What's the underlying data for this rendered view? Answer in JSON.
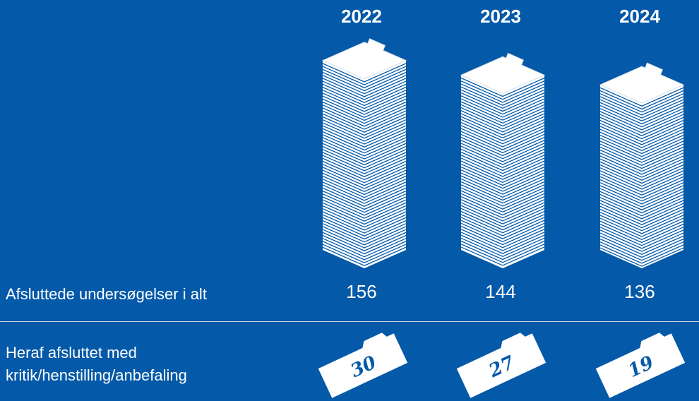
{
  "chart_data": {
    "type": "bar",
    "categories": [
      "2022",
      "2023",
      "2024"
    ],
    "series": [
      {
        "values": [
          156,
          144,
          136
        ]
      },
      {
        "values": [
          30,
          27,
          19
        ]
      }
    ],
    "rows": {
      "total_label": "Afsluttede undersøgelser i alt",
      "criticism_label_line1": "Heraf afsluttet med",
      "criticism_label_line2": "kritik/henstilling/anbefaling"
    },
    "colors": {
      "background": "#0459a8",
      "sheet": "#ffffff",
      "shadow": "#d6dde6"
    },
    "icon": "folder-stack-icon"
  }
}
